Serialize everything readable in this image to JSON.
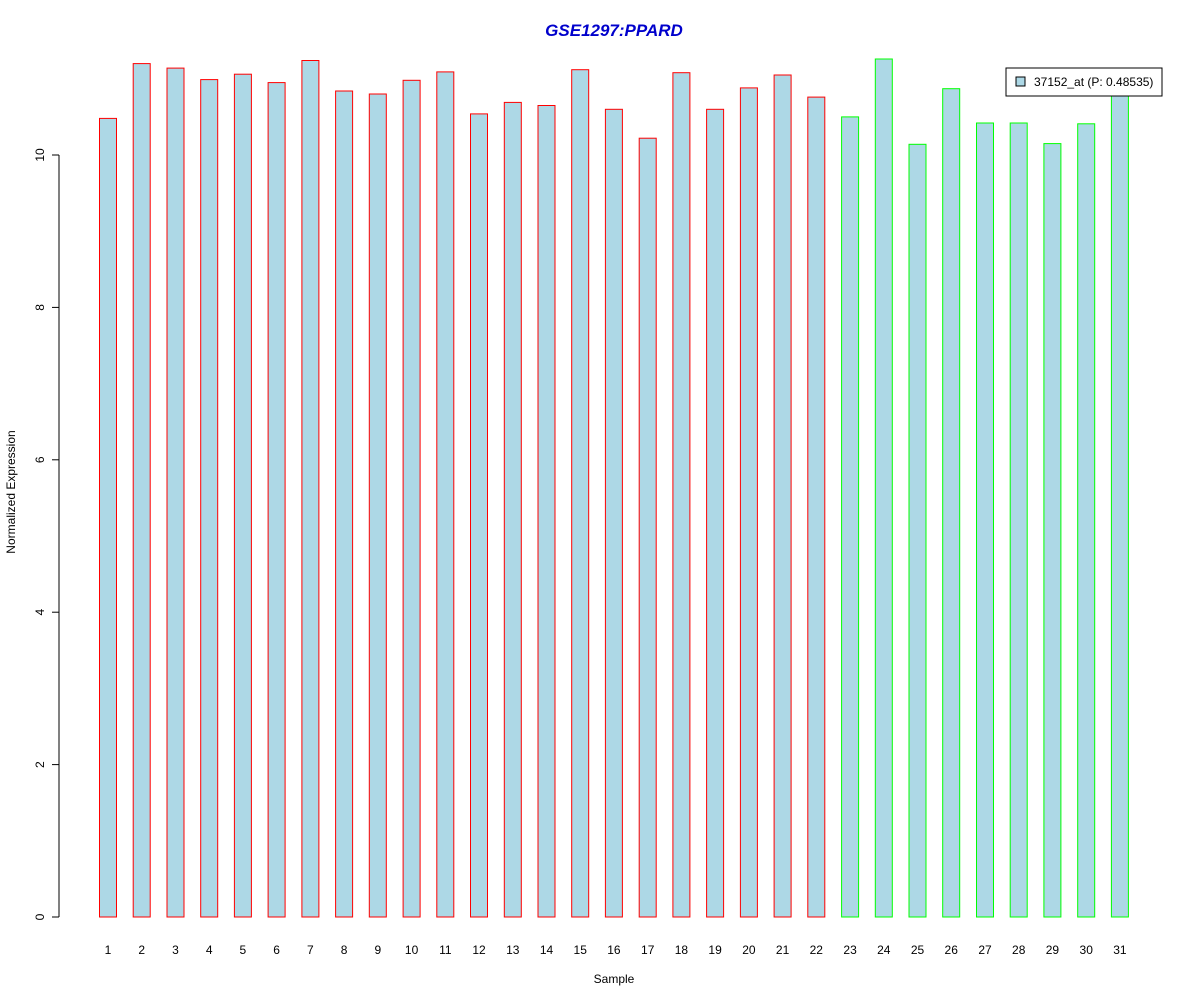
{
  "chart_data": {
    "type": "bar",
    "title": "GSE1297:PPARD",
    "xlabel": "Sample",
    "ylabel": "Normalized Expression",
    "ylim": [
      0,
      11.3
    ],
    "y_ticks": [
      0,
      2,
      4,
      6,
      8,
      10
    ],
    "y_tick_labels": [
      "0",
      "2",
      "4",
      "6",
      "8",
      "10"
    ],
    "grid": false,
    "categories": [
      "1",
      "2",
      "3",
      "4",
      "5",
      "6",
      "7",
      "8",
      "9",
      "10",
      "11",
      "12",
      "13",
      "14",
      "15",
      "16",
      "17",
      "18",
      "19",
      "20",
      "21",
      "22",
      "23",
      "24",
      "25",
      "26",
      "27",
      "28",
      "29",
      "30",
      "31"
    ],
    "values": [
      10.48,
      11.2,
      11.14,
      10.99,
      11.06,
      10.95,
      11.24,
      10.84,
      10.8,
      10.98,
      11.09,
      10.54,
      10.69,
      10.65,
      11.12,
      10.6,
      10.22,
      11.08,
      10.6,
      10.88,
      11.05,
      10.76,
      10.5,
      11.26,
      10.14,
      10.87,
      10.42,
      10.42,
      10.15,
      10.41,
      10.82
    ],
    "groups": [
      "red",
      "red",
      "red",
      "red",
      "red",
      "red",
      "red",
      "red",
      "red",
      "red",
      "red",
      "red",
      "red",
      "red",
      "red",
      "red",
      "red",
      "red",
      "red",
      "red",
      "red",
      "red",
      "green",
      "green",
      "green",
      "green",
      "green",
      "green",
      "green",
      "green",
      "green"
    ],
    "legend": {
      "position": "top-right",
      "entries": [
        "37152_at (P: 0.48535)"
      ]
    },
    "colors": {
      "title": "#0000CC",
      "bar_fill": "#ADD8E6",
      "red": "#FF0000",
      "green": "#00FF00",
      "axis": "#000000"
    }
  }
}
